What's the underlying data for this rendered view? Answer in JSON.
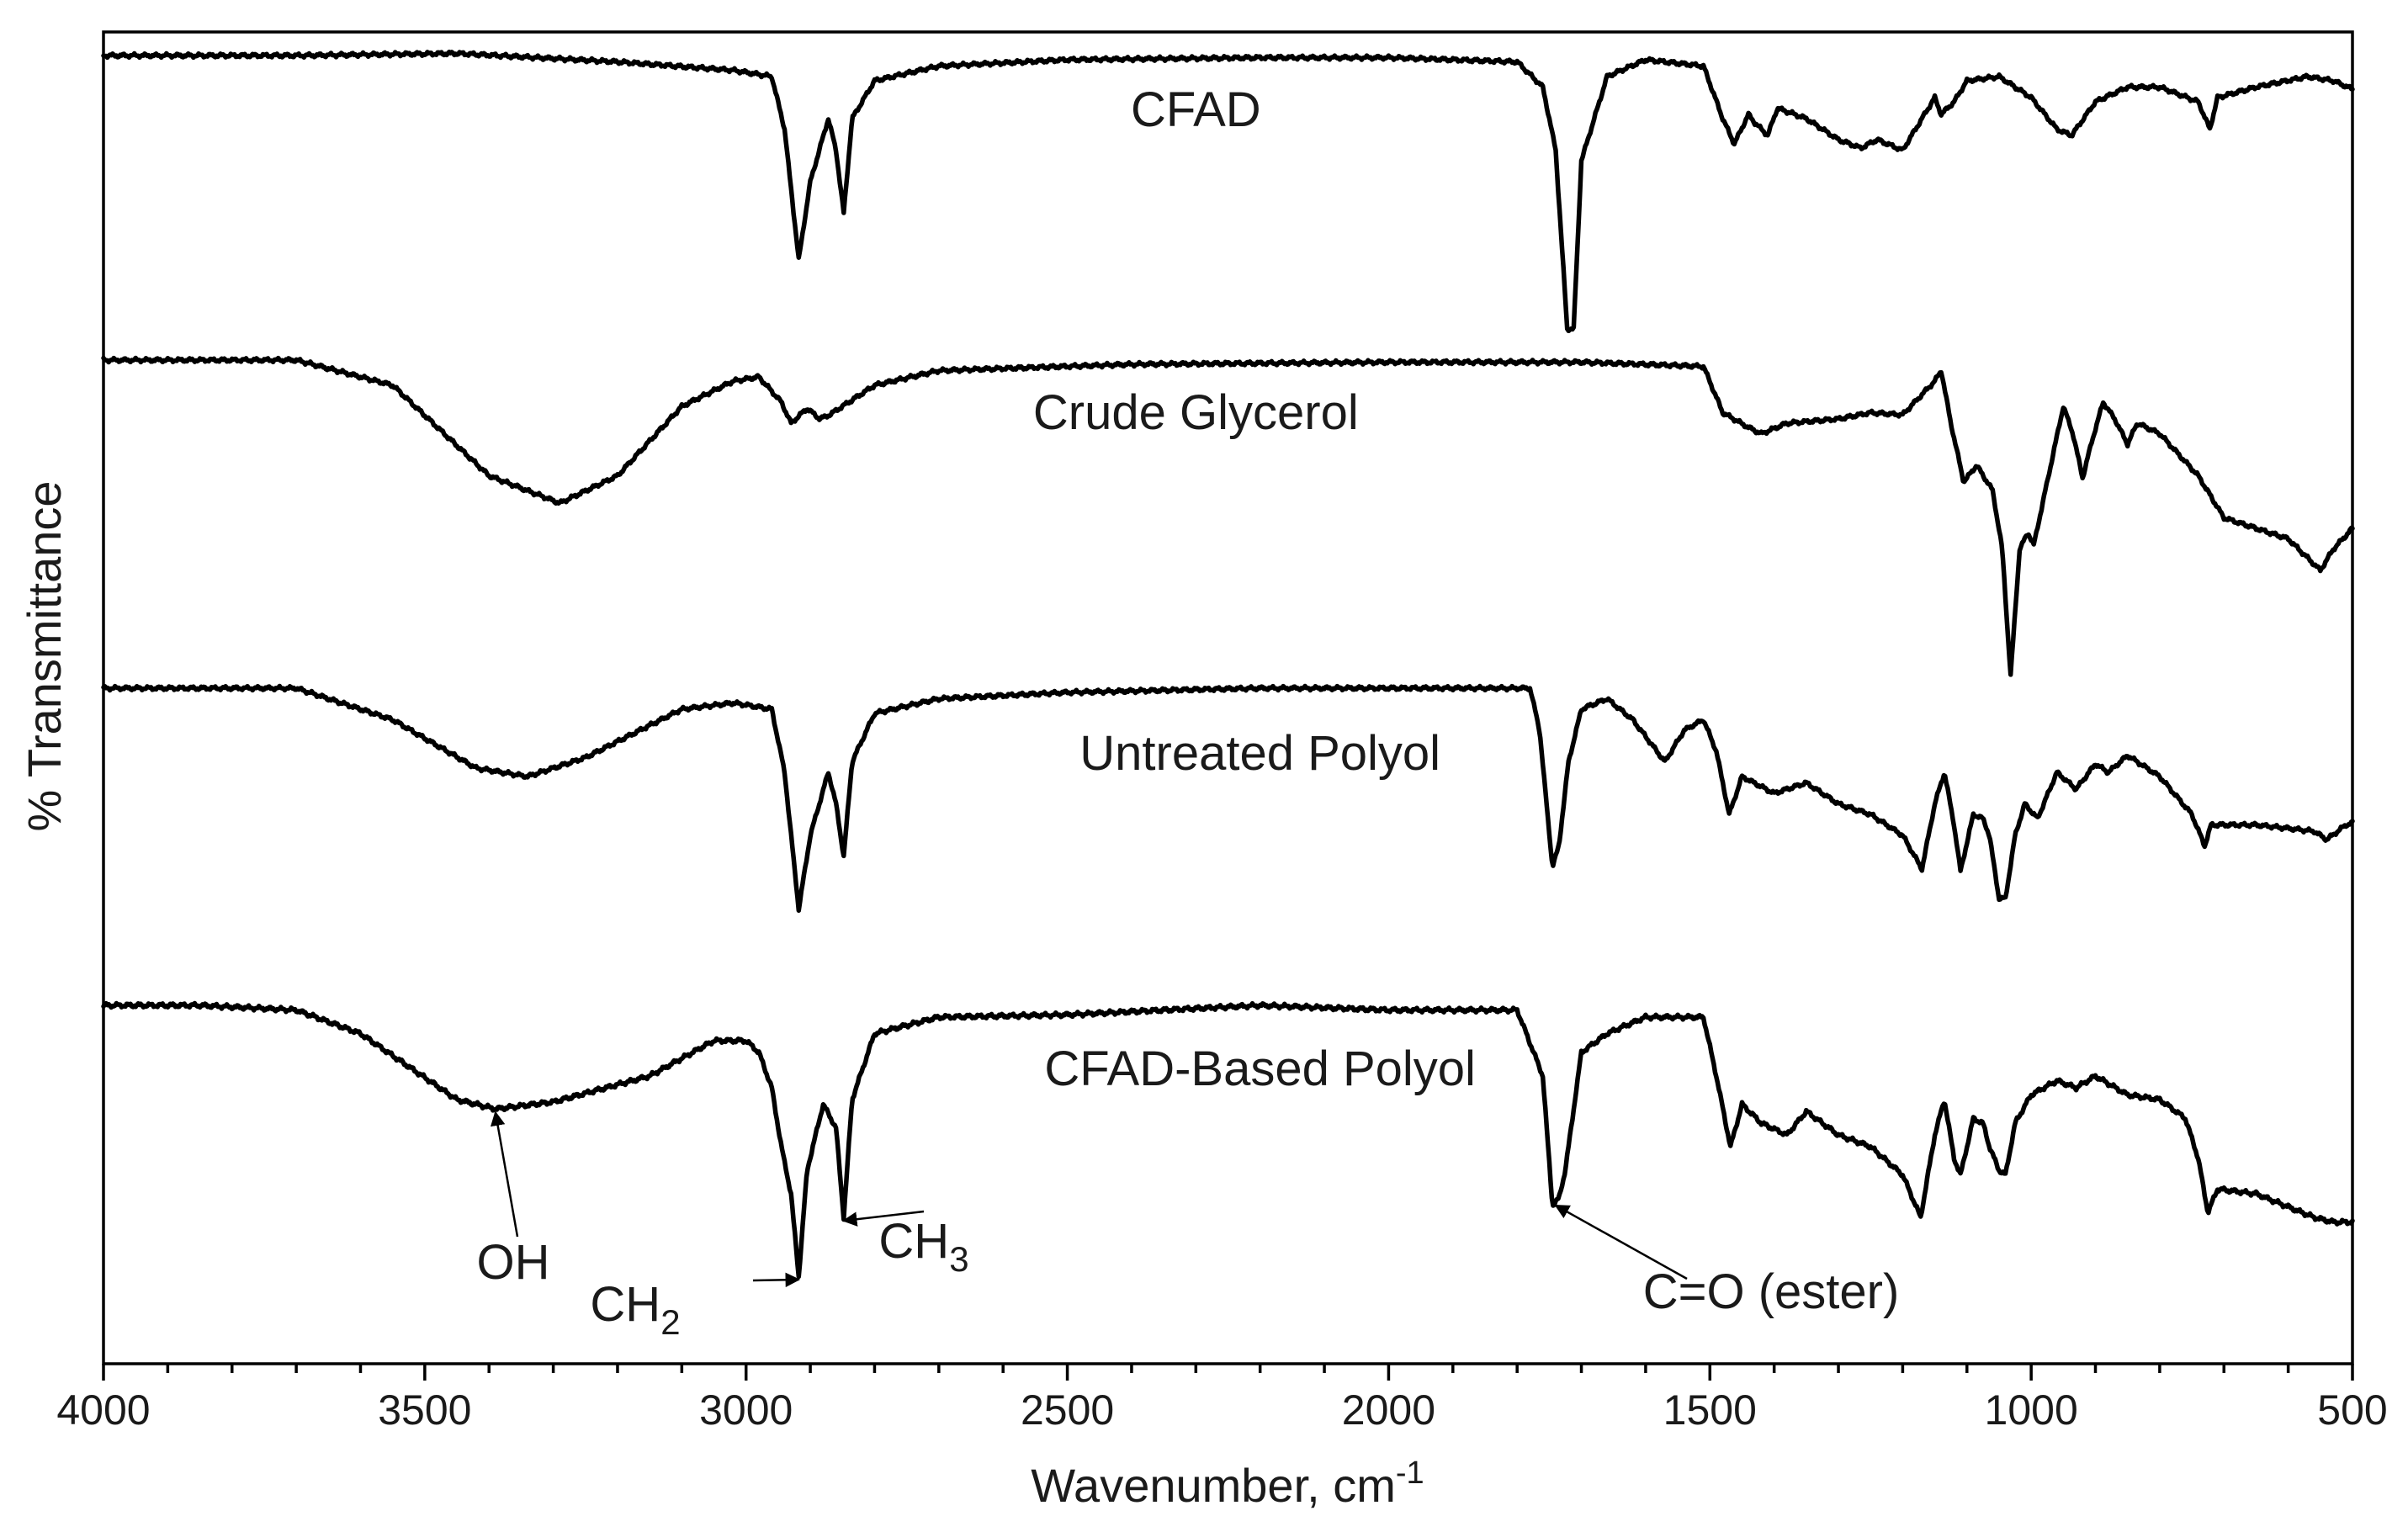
{
  "chart_data": {
    "type": "line",
    "title": "",
    "xlabel": "Wavenumber, cm",
    "xlabel_sup": "-1",
    "ylabel": "% Transmittance",
    "xlim": [
      4000,
      500
    ],
    "x_reversed": true,
    "y_ticks_shown": false,
    "grid": false,
    "x_ticks": [
      4000,
      3500,
      3000,
      2500,
      2000,
      1500,
      1000,
      500
    ],
    "colors": {
      "line": "#000000",
      "frame": "#000000",
      "text": "#1a1a1a"
    },
    "series": [
      {
        "name": "CFAD",
        "label_x": 2300,
        "points": [
          [
            4000,
            0.0
          ],
          [
            3700,
            0.0
          ],
          [
            3450,
            -0.01
          ],
          [
            3200,
            0.03
          ],
          [
            3020,
            0.07
          ],
          [
            2960,
            0.1
          ],
          [
            2940,
            0.35
          ],
          [
            2918,
            0.97
          ],
          [
            2900,
            0.6
          ],
          [
            2872,
            0.3
          ],
          [
            2860,
            0.45
          ],
          [
            2848,
            0.75
          ],
          [
            2835,
            0.3
          ],
          [
            2800,
            0.12
          ],
          [
            2700,
            0.05
          ],
          [
            2500,
            0.02
          ],
          [
            2200,
            0.01
          ],
          [
            2000,
            0.01
          ],
          [
            1800,
            0.03
          ],
          [
            1760,
            0.15
          ],
          [
            1740,
            0.45
          ],
          [
            1722,
            1.3
          ],
          [
            1712,
            1.3
          ],
          [
            1700,
            0.5
          ],
          [
            1660,
            0.1
          ],
          [
            1600,
            0.02
          ],
          [
            1510,
            0.05
          ],
          [
            1480,
            0.3
          ],
          [
            1462,
            0.42
          ],
          [
            1440,
            0.28
          ],
          [
            1430,
            0.32
          ],
          [
            1410,
            0.38
          ],
          [
            1395,
            0.25
          ],
          [
            1350,
            0.3
          ],
          [
            1300,
            0.4
          ],
          [
            1265,
            0.44
          ],
          [
            1240,
            0.4
          ],
          [
            1200,
            0.45
          ],
          [
            1170,
            0.3
          ],
          [
            1150,
            0.2
          ],
          [
            1140,
            0.28
          ],
          [
            1120,
            0.22
          ],
          [
            1100,
            0.12
          ],
          [
            1050,
            0.1
          ],
          [
            1000,
            0.2
          ],
          [
            960,
            0.35
          ],
          [
            937,
            0.38
          ],
          [
            900,
            0.22
          ],
          [
            850,
            0.15
          ],
          [
            800,
            0.15
          ],
          [
            740,
            0.22
          ],
          [
            722,
            0.35
          ],
          [
            710,
            0.2
          ],
          [
            650,
            0.15
          ],
          [
            570,
            0.1
          ],
          [
            530,
            0.12
          ],
          [
            500,
            0.16
          ]
        ]
      },
      {
        "name": "Crude Glycerol",
        "label_x": 2300,
        "points": [
          [
            4000,
            0.0
          ],
          [
            3700,
            0.0
          ],
          [
            3550,
            0.12
          ],
          [
            3400,
            0.55
          ],
          [
            3290,
            0.68
          ],
          [
            3200,
            0.55
          ],
          [
            3100,
            0.22
          ],
          [
            3020,
            0.1
          ],
          [
            2980,
            0.08
          ],
          [
            2945,
            0.2
          ],
          [
            2930,
            0.3
          ],
          [
            2905,
            0.23
          ],
          [
            2885,
            0.28
          ],
          [
            2870,
            0.26
          ],
          [
            2800,
            0.12
          ],
          [
            2700,
            0.05
          ],
          [
            2400,
            0.02
          ],
          [
            2000,
            0.01
          ],
          [
            1700,
            0.01
          ],
          [
            1510,
            0.03
          ],
          [
            1480,
            0.25
          ],
          [
            1440,
            0.32
          ],
          [
            1420,
            0.35
          ],
          [
            1380,
            0.3
          ],
          [
            1300,
            0.28
          ],
          [
            1250,
            0.25
          ],
          [
            1200,
            0.26
          ],
          [
            1150,
            0.1
          ],
          [
            1140,
            0.05
          ],
          [
            1125,
            0.3
          ],
          [
            1105,
            0.58
          ],
          [
            1085,
            0.5
          ],
          [
            1060,
            0.62
          ],
          [
            1045,
            0.9
          ],
          [
            1032,
            1.5
          ],
          [
            1018,
            0.9
          ],
          [
            1005,
            0.82
          ],
          [
            996,
            0.88
          ],
          [
            980,
            0.65
          ],
          [
            950,
            0.22
          ],
          [
            935,
            0.35
          ],
          [
            920,
            0.56
          ],
          [
            905,
            0.38
          ],
          [
            888,
            0.2
          ],
          [
            870,
            0.28
          ],
          [
            850,
            0.4
          ],
          [
            835,
            0.3
          ],
          [
            800,
            0.35
          ],
          [
            740,
            0.55
          ],
          [
            700,
            0.75
          ],
          [
            600,
            0.85
          ],
          [
            550,
            1.0
          ],
          [
            530,
            0.9
          ],
          [
            500,
            0.8
          ]
        ]
      },
      {
        "name": "Untreated Polyol",
        "label_x": 2200,
        "points": [
          [
            4000,
            0.0
          ],
          [
            3700,
            0.0
          ],
          [
            3550,
            0.15
          ],
          [
            3420,
            0.38
          ],
          [
            3340,
            0.42
          ],
          [
            3250,
            0.33
          ],
          [
            3100,
            0.1
          ],
          [
            3020,
            0.07
          ],
          [
            2960,
            0.1
          ],
          [
            2940,
            0.4
          ],
          [
            2918,
            1.05
          ],
          [
            2900,
            0.7
          ],
          [
            2872,
            0.4
          ],
          [
            2860,
            0.55
          ],
          [
            2848,
            0.8
          ],
          [
            2835,
            0.35
          ],
          [
            2800,
            0.12
          ],
          [
            2700,
            0.05
          ],
          [
            2500,
            0.02
          ],
          [
            2200,
            0.0
          ],
          [
            1950,
            0.0
          ],
          [
            1780,
            0.0
          ],
          [
            1765,
            0.2
          ],
          [
            1745,
            0.85
          ],
          [
            1735,
            0.75
          ],
          [
            1720,
            0.35
          ],
          [
            1700,
            0.1
          ],
          [
            1660,
            0.05
          ],
          [
            1620,
            0.15
          ],
          [
            1570,
            0.35
          ],
          [
            1540,
            0.2
          ],
          [
            1510,
            0.15
          ],
          [
            1490,
            0.3
          ],
          [
            1470,
            0.6
          ],
          [
            1450,
            0.42
          ],
          [
            1400,
            0.5
          ],
          [
            1350,
            0.45
          ],
          [
            1300,
            0.55
          ],
          [
            1250,
            0.6
          ],
          [
            1200,
            0.7
          ],
          [
            1170,
            0.86
          ],
          [
            1150,
            0.55
          ],
          [
            1135,
            0.4
          ],
          [
            1120,
            0.65
          ],
          [
            1110,
            0.87
          ],
          [
            1090,
            0.6
          ],
          [
            1075,
            0.62
          ],
          [
            1065,
            0.7
          ],
          [
            1050,
            1.0
          ],
          [
            1040,
            1.0
          ],
          [
            1025,
            0.7
          ],
          [
            1010,
            0.55
          ],
          [
            990,
            0.62
          ],
          [
            960,
            0.4
          ],
          [
            930,
            0.48
          ],
          [
            900,
            0.36
          ],
          [
            880,
            0.4
          ],
          [
            850,
            0.32
          ],
          [
            800,
            0.42
          ],
          [
            750,
            0.6
          ],
          [
            730,
            0.75
          ],
          [
            720,
            0.65
          ],
          [
            650,
            0.65
          ],
          [
            560,
            0.68
          ],
          [
            540,
            0.72
          ],
          [
            510,
            0.65
          ],
          [
            500,
            0.64
          ]
        ]
      },
      {
        "name": "CFAD-Based Polyol",
        "label_x": 2200,
        "points": [
          [
            4000,
            0.0
          ],
          [
            3850,
            0.0
          ],
          [
            3700,
            0.02
          ],
          [
            3600,
            0.12
          ],
          [
            3450,
            0.4
          ],
          [
            3390,
            0.44
          ],
          [
            3300,
            0.41
          ],
          [
            3150,
            0.3
          ],
          [
            3050,
            0.15
          ],
          [
            3000,
            0.15
          ],
          [
            2980,
            0.2
          ],
          [
            2960,
            0.35
          ],
          [
            2945,
            0.6
          ],
          [
            2930,
            0.8
          ],
          [
            2918,
            1.15
          ],
          [
            2905,
            0.7
          ],
          [
            2880,
            0.42
          ],
          [
            2860,
            0.52
          ],
          [
            2848,
            0.9
          ],
          [
            2835,
            0.4
          ],
          [
            2800,
            0.12
          ],
          [
            2700,
            0.05
          ],
          [
            2500,
            0.04
          ],
          [
            2200,
            0.0
          ],
          [
            2000,
            0.02
          ],
          [
            1800,
            0.02
          ],
          [
            1760,
            0.3
          ],
          [
            1745,
            0.85
          ],
          [
            1735,
            0.82
          ],
          [
            1725,
            0.7
          ],
          [
            1700,
            0.2
          ],
          [
            1660,
            0.12
          ],
          [
            1600,
            0.05
          ],
          [
            1510,
            0.05
          ],
          [
            1490,
            0.3
          ],
          [
            1468,
            0.6
          ],
          [
            1450,
            0.42
          ],
          [
            1420,
            0.5
          ],
          [
            1380,
            0.55
          ],
          [
            1350,
            0.45
          ],
          [
            1300,
            0.55
          ],
          [
            1250,
            0.6
          ],
          [
            1200,
            0.72
          ],
          [
            1172,
            0.9
          ],
          [
            1150,
            0.55
          ],
          [
            1135,
            0.4
          ],
          [
            1120,
            0.65
          ],
          [
            1110,
            0.72
          ],
          [
            1090,
            0.48
          ],
          [
            1075,
            0.5
          ],
          [
            1065,
            0.6
          ],
          [
            1050,
            0.7
          ],
          [
            1040,
            0.72
          ],
          [
            1025,
            0.5
          ],
          [
            1000,
            0.38
          ],
          [
            960,
            0.32
          ],
          [
            930,
            0.35
          ],
          [
            900,
            0.3
          ],
          [
            850,
            0.38
          ],
          [
            800,
            0.4
          ],
          [
            760,
            0.48
          ],
          [
            740,
            0.65
          ],
          [
            725,
            0.88
          ],
          [
            710,
            0.78
          ],
          [
            650,
            0.8
          ],
          [
            560,
            0.9
          ],
          [
            530,
            0.92
          ],
          [
            500,
            0.92
          ]
        ]
      }
    ],
    "annotations": [
      {
        "label": "OH",
        "target_series": 3,
        "target_x": 3390
      },
      {
        "label": "CH",
        "sub": "2",
        "target_series": 3,
        "target_x": 2918
      },
      {
        "label": "CH",
        "sub": "3",
        "target_series": 3,
        "target_x": 2848
      },
      {
        "label": "C=O (ester)",
        "target_series": 3,
        "target_x": 1740
      }
    ]
  }
}
